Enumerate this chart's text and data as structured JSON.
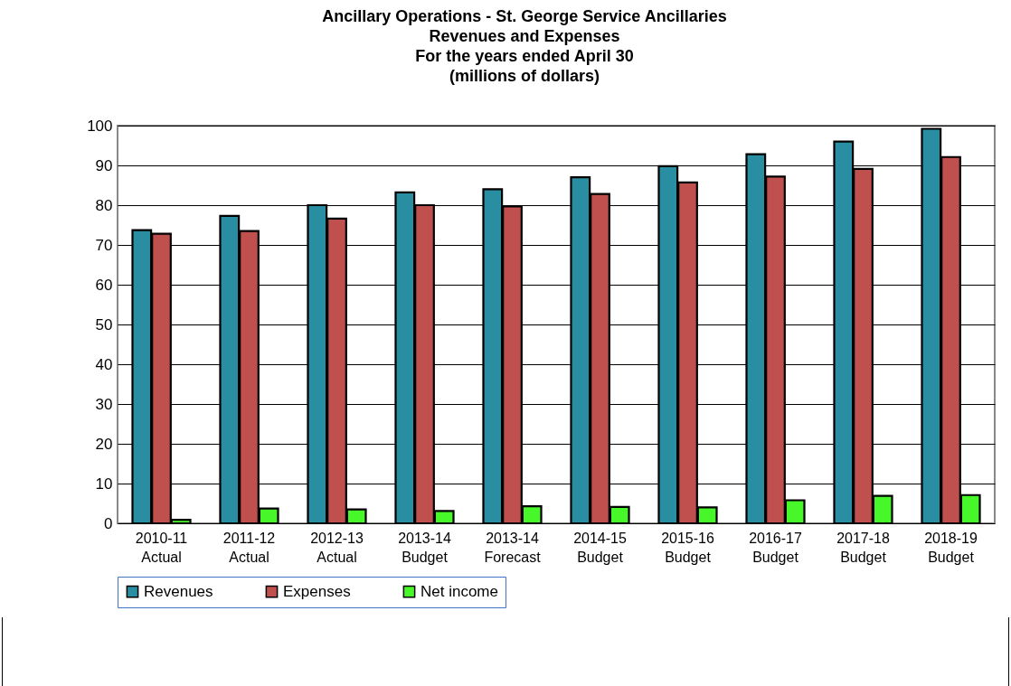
{
  "chart_data": {
    "type": "bar",
    "title": "Ancillary Operations - St. George Service Ancillaries\nRevenues and Expenses\nFor the years ended April 30\n(millions of dollars)",
    "categories": [
      "2010-11\nActual",
      "2011-12\nActual",
      "2012-13\nActual",
      "2013-14\nBudget",
      "2013-14\nForecast",
      "2014-15\nBudget",
      "2015-16\nBudget",
      "2016-17\nBudget",
      "2017-18\nBudget",
      "2018-19\nBudget"
    ],
    "series": [
      {
        "name": "Revenues",
        "color": "#2a8ea3",
        "values": [
          73.7,
          77.3,
          80.0,
          83.2,
          84.0,
          87.0,
          89.8,
          92.8,
          96.0,
          99.2
        ]
      },
      {
        "name": "Expenses",
        "color": "#c0504d",
        "values": [
          72.8,
          73.5,
          76.6,
          80.0,
          79.7,
          82.8,
          85.7,
          87.2,
          89.1,
          92.1
        ]
      },
      {
        "name": "Net income",
        "color": "#47f72a",
        "values": [
          0.9,
          3.7,
          3.5,
          3.1,
          4.3,
          4.1,
          4.0,
          5.8,
          6.9,
          7.1
        ]
      }
    ],
    "ylim": [
      0,
      100
    ],
    "yticks": [
      0,
      10,
      20,
      30,
      40,
      50,
      60,
      70,
      80,
      90,
      100
    ],
    "grid": "y",
    "legend": "bottom"
  }
}
